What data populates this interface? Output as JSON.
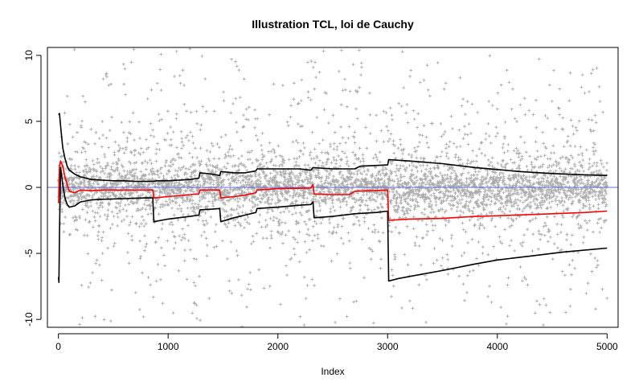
{
  "chart_data": {
    "type": "scatter",
    "title": "Illustration TCL, loi de Cauchy",
    "xlabel": "Index",
    "ylabel": "",
    "xlim": [
      -100,
      5100
    ],
    "ylim": [
      -10.6,
      10.6
    ],
    "xticks": [
      0,
      1000,
      2000,
      3000,
      4000,
      5000
    ],
    "yticks": [
      -10,
      -5,
      0,
      5,
      10
    ],
    "grid": false,
    "legend": "none",
    "reference_line": {
      "y": 0,
      "color": "#6b6bde"
    },
    "scatter_series": {
      "marker": "plus",
      "color": "#aaaaaa",
      "n_points": 5000,
      "x_range": [
        1,
        5000
      ],
      "y_clip": [
        -10.6,
        10.6
      ]
    },
    "series": [
      {
        "color": "#000000",
        "points": [
          [
            1,
            5.5
          ],
          [
            10,
            5.6
          ],
          [
            25,
            4.2
          ],
          [
            40,
            3.0
          ],
          [
            60,
            2.2
          ],
          [
            80,
            1.6
          ],
          [
            100,
            1.3
          ],
          [
            150,
            1.0
          ],
          [
            200,
            0.8
          ],
          [
            300,
            0.6
          ],
          [
            400,
            0.55
          ],
          [
            500,
            0.5
          ],
          [
            600,
            0.5
          ],
          [
            700,
            0.45
          ],
          [
            800,
            0.45
          ],
          [
            860,
            0.45
          ],
          [
            900,
            0.5
          ],
          [
            1000,
            0.5
          ],
          [
            1100,
            0.55
          ],
          [
            1200,
            0.6
          ],
          [
            1280,
            0.7
          ],
          [
            1290,
            1.1
          ],
          [
            1400,
            1.0
          ],
          [
            1470,
            0.9
          ],
          [
            1480,
            1.2
          ],
          [
            1600,
            1.1
          ],
          [
            1700,
            1.1
          ],
          [
            1800,
            1.25
          ],
          [
            1810,
            1.4
          ],
          [
            2000,
            1.4
          ],
          [
            2200,
            1.4
          ],
          [
            2300,
            1.3
          ],
          [
            2320,
            1.5
          ],
          [
            2500,
            1.4
          ],
          [
            2650,
            1.4
          ],
          [
            2700,
            1.4
          ],
          [
            2750,
            1.6
          ],
          [
            3000,
            1.7
          ],
          [
            3010,
            2.1
          ],
          [
            3200,
            2.0
          ],
          [
            3500,
            1.8
          ],
          [
            3800,
            1.5
          ],
          [
            4000,
            1.35
          ],
          [
            4200,
            1.2
          ],
          [
            4500,
            1.05
          ],
          [
            4800,
            0.95
          ],
          [
            5000,
            0.9
          ]
        ]
      },
      {
        "color": "#ff0000",
        "points": [
          [
            1,
            -1.2
          ],
          [
            10,
            1.6
          ],
          [
            20,
            2.0
          ],
          [
            40,
            1.6
          ],
          [
            60,
            0.8
          ],
          [
            80,
            0.2
          ],
          [
            100,
            -0.3
          ],
          [
            150,
            -0.4
          ],
          [
            200,
            -0.2
          ],
          [
            300,
            -0.25
          ],
          [
            400,
            -0.2
          ],
          [
            500,
            -0.2
          ],
          [
            700,
            -0.2
          ],
          [
            860,
            -0.2
          ],
          [
            870,
            -0.8
          ],
          [
            1000,
            -0.7
          ],
          [
            1200,
            -0.55
          ],
          [
            1280,
            -0.5
          ],
          [
            1290,
            -0.2
          ],
          [
            1470,
            -0.2
          ],
          [
            1480,
            -0.8
          ],
          [
            1600,
            -0.7
          ],
          [
            1700,
            -0.6
          ],
          [
            1800,
            -0.4
          ],
          [
            1810,
            -0.2
          ],
          [
            2000,
            -0.1
          ],
          [
            2300,
            -0.05
          ],
          [
            2320,
            0.2
          ],
          [
            2330,
            -0.5
          ],
          [
            2500,
            -0.55
          ],
          [
            2650,
            -0.55
          ],
          [
            2700,
            -0.3
          ],
          [
            3000,
            -0.2
          ],
          [
            3010,
            -2.5
          ],
          [
            3200,
            -2.4
          ],
          [
            3500,
            -2.35
          ],
          [
            3800,
            -2.2
          ],
          [
            4000,
            -2.15
          ],
          [
            4500,
            -2.0
          ],
          [
            4800,
            -1.9
          ],
          [
            5000,
            -1.8
          ]
        ]
      },
      {
        "color": "#000000",
        "points": [
          [
            1,
            -6.8
          ],
          [
            5,
            -7.2
          ],
          [
            10,
            -3.5
          ],
          [
            20,
            1.5
          ],
          [
            40,
            0.2
          ],
          [
            60,
            -0.8
          ],
          [
            80,
            -1.3
          ],
          [
            100,
            -1.5
          ],
          [
            150,
            -1.4
          ],
          [
            200,
            -1.1
          ],
          [
            300,
            -0.95
          ],
          [
            400,
            -0.9
          ],
          [
            600,
            -0.85
          ],
          [
            800,
            -0.8
          ],
          [
            860,
            -0.8
          ],
          [
            870,
            -2.6
          ],
          [
            1000,
            -2.4
          ],
          [
            1200,
            -2.2
          ],
          [
            1280,
            -2.1
          ],
          [
            1290,
            -1.7
          ],
          [
            1400,
            -1.65
          ],
          [
            1470,
            -1.6
          ],
          [
            1480,
            -2.6
          ],
          [
            1600,
            -2.3
          ],
          [
            1700,
            -2.1
          ],
          [
            1800,
            -1.9
          ],
          [
            1810,
            -1.6
          ],
          [
            2000,
            -1.5
          ],
          [
            2200,
            -1.35
          ],
          [
            2300,
            -1.3
          ],
          [
            2320,
            -1.1
          ],
          [
            2330,
            -2.3
          ],
          [
            2500,
            -2.2
          ],
          [
            2700,
            -2.0
          ],
          [
            2900,
            -1.9
          ],
          [
            3000,
            -1.8
          ],
          [
            3010,
            -7.1
          ],
          [
            3100,
            -6.9
          ],
          [
            3300,
            -6.6
          ],
          [
            3500,
            -6.3
          ],
          [
            3800,
            -5.8
          ],
          [
            4000,
            -5.5
          ],
          [
            4300,
            -5.2
          ],
          [
            4600,
            -4.9
          ],
          [
            5000,
            -4.6
          ]
        ]
      }
    ]
  }
}
